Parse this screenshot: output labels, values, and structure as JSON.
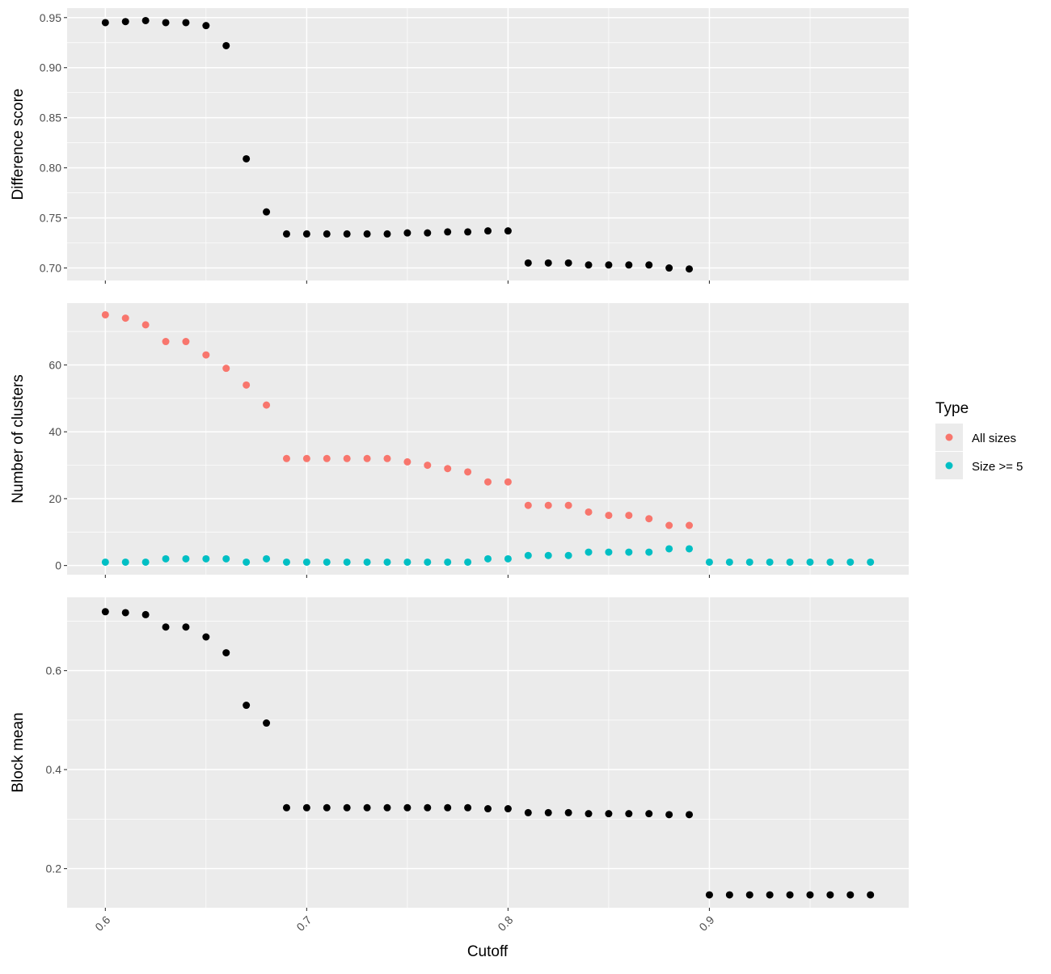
{
  "chart_data": {
    "type": "scatter",
    "xlabel": "Cutoff",
    "x_ticks": [
      "0.6",
      "0.7",
      "0.8",
      "0.9"
    ],
    "xlim": [
      0.581,
      0.999
    ],
    "grid": true,
    "legend": {
      "title": "Type",
      "position": "right",
      "entries": [
        {
          "label": "All sizes",
          "color": "#F8766D"
        },
        {
          "label": "Size >= 5",
          "color": "#00BFC4"
        }
      ]
    },
    "panels": [
      {
        "ylabel": "Difference score",
        "ylim": [
          0.6875,
          0.9595
        ],
        "y_ticks": [
          "0.70",
          "0.75",
          "0.80",
          "0.85",
          "0.90",
          "0.95"
        ],
        "series": [
          {
            "color": "#000000",
            "x": [
              0.6,
              0.61,
              0.62,
              0.63,
              0.64,
              0.65,
              0.66,
              0.67,
              0.68,
              0.69,
              0.7,
              0.71,
              0.72,
              0.73,
              0.74,
              0.75,
              0.76,
              0.77,
              0.78,
              0.79,
              0.8,
              0.81,
              0.82,
              0.83,
              0.84,
              0.85,
              0.86,
              0.87,
              0.88,
              0.89
            ],
            "y": [
              0.945,
              0.946,
              0.947,
              0.945,
              0.945,
              0.942,
              0.922,
              0.809,
              0.756,
              0.734,
              0.734,
              0.734,
              0.734,
              0.734,
              0.734,
              0.735,
              0.735,
              0.736,
              0.736,
              0.737,
              0.737,
              0.705,
              0.705,
              0.705,
              0.703,
              0.703,
              0.703,
              0.703,
              0.7,
              0.699
            ]
          }
        ]
      },
      {
        "ylabel": "Number of clusters",
        "ylim": [
          -2.75,
          78.5
        ],
        "y_ticks": [
          "0",
          "20",
          "40",
          "60"
        ],
        "series": [
          {
            "name": "All sizes",
            "color": "#F8766D",
            "x": [
              0.6,
              0.61,
              0.62,
              0.63,
              0.64,
              0.65,
              0.66,
              0.67,
              0.68,
              0.69,
              0.7,
              0.71,
              0.72,
              0.73,
              0.74,
              0.75,
              0.76,
              0.77,
              0.78,
              0.79,
              0.8,
              0.81,
              0.82,
              0.83,
              0.84,
              0.85,
              0.86,
              0.87,
              0.88,
              0.89
            ],
            "y": [
              75,
              74,
              72,
              67,
              67,
              63,
              59,
              54,
              48,
              32,
              32,
              32,
              32,
              32,
              32,
              31,
              30,
              29,
              28,
              25,
              25,
              18,
              18,
              18,
              16,
              15,
              15,
              14,
              12,
              12
            ]
          },
          {
            "name": "Size >= 5",
            "color": "#00BFC4",
            "x": [
              0.6,
              0.61,
              0.62,
              0.63,
              0.64,
              0.65,
              0.66,
              0.67,
              0.68,
              0.69,
              0.7,
              0.71,
              0.72,
              0.73,
              0.74,
              0.75,
              0.76,
              0.77,
              0.78,
              0.79,
              0.8,
              0.81,
              0.82,
              0.83,
              0.84,
              0.85,
              0.86,
              0.87,
              0.88,
              0.89,
              0.9,
              0.91,
              0.92,
              0.93,
              0.94,
              0.95,
              0.96,
              0.97,
              0.98
            ],
            "y": [
              1,
              1,
              1,
              2,
              2,
              2,
              2,
              1,
              2,
              1,
              1,
              1,
              1,
              1,
              1,
              1,
              1,
              1,
              1,
              2,
              2,
              3,
              3,
              3,
              4,
              4,
              4,
              4,
              5,
              5,
              1,
              1,
              1,
              1,
              1,
              1,
              1,
              1,
              1
            ]
          }
        ]
      },
      {
        "ylabel": "Block mean",
        "ylim": [
          0.121,
          0.748
        ],
        "y_ticks": [
          "0.2",
          "0.4",
          "0.6"
        ],
        "series": [
          {
            "color": "#000000",
            "x": [
              0.6,
              0.61,
              0.62,
              0.63,
              0.64,
              0.65,
              0.66,
              0.67,
              0.68,
              0.69,
              0.7,
              0.71,
              0.72,
              0.73,
              0.74,
              0.75,
              0.76,
              0.77,
              0.78,
              0.79,
              0.8,
              0.81,
              0.82,
              0.83,
              0.84,
              0.85,
              0.86,
              0.87,
              0.88,
              0.89,
              0.9,
              0.91,
              0.92,
              0.93,
              0.94,
              0.95,
              0.96,
              0.97,
              0.98
            ],
            "y": [
              0.719,
              0.717,
              0.713,
              0.688,
              0.688,
              0.668,
              0.636,
              0.53,
              0.494,
              0.323,
              0.323,
              0.323,
              0.323,
              0.323,
              0.323,
              0.323,
              0.323,
              0.323,
              0.323,
              0.321,
              0.321,
              0.313,
              0.313,
              0.313,
              0.311,
              0.311,
              0.311,
              0.311,
              0.309,
              0.309,
              0.147,
              0.147,
              0.147,
              0.147,
              0.147,
              0.147,
              0.147,
              0.147,
              0.147
            ]
          }
        ]
      }
    ]
  }
}
